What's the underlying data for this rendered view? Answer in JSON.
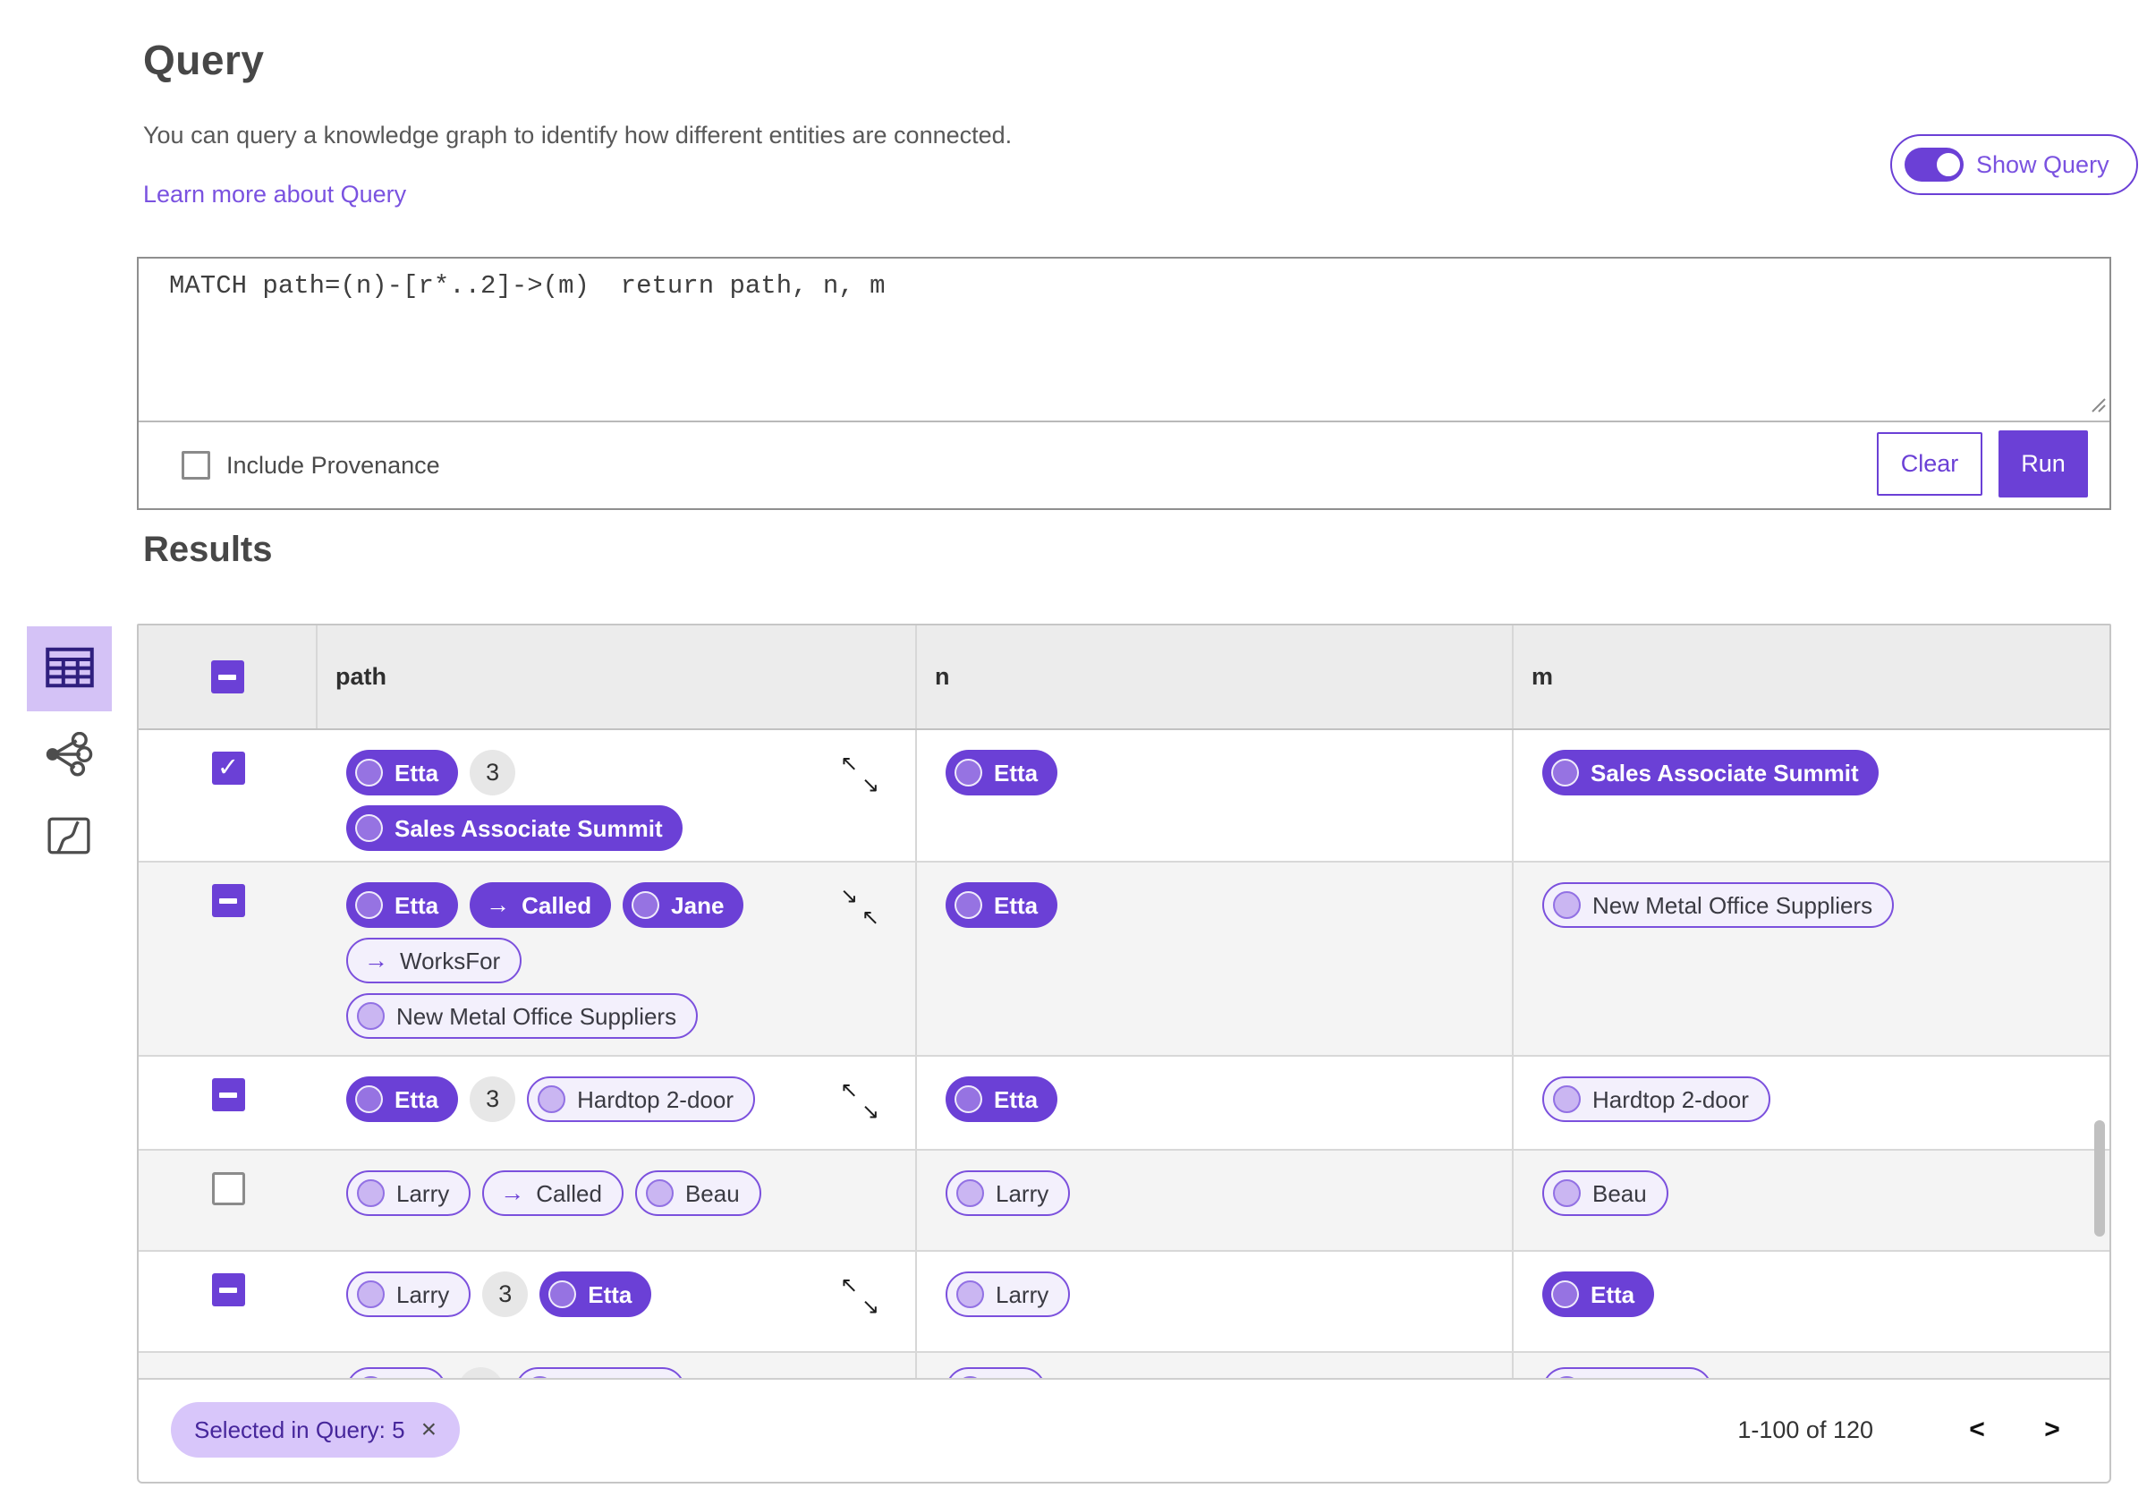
{
  "header": {
    "title": "Query",
    "description": "You can query a knowledge graph to identify how different entities are connected.",
    "learn_more_link": "Learn more about Query",
    "show_query_label": "Show Query",
    "show_query_state": "on"
  },
  "query": {
    "text": "MATCH path=(n)-[r*..2]->(m)  return path, n, m",
    "include_provenance_label": "Include Provenance",
    "include_provenance_checked": false,
    "clear_label": "Clear",
    "run_label": "Run"
  },
  "results": {
    "title": "Results",
    "view_switcher": [
      {
        "name": "table-view",
        "icon": "table-icon",
        "active": true
      },
      {
        "name": "graph-view",
        "icon": "graph-icon",
        "active": false
      },
      {
        "name": "map-view",
        "icon": "map-icon",
        "active": false
      }
    ],
    "table": {
      "columns": [
        "path",
        "n",
        "m"
      ],
      "header_checkbox": "indeterminate",
      "rows": [
        {
          "select": "checked",
          "expander": "expand",
          "path": [
            [
              {
                "kind": "node",
                "style": "solid",
                "label": "Etta"
              },
              {
                "kind": "count",
                "label": "3"
              }
            ],
            [
              {
                "kind": "node",
                "style": "solid",
                "label": "Sales Associate Summit"
              }
            ]
          ],
          "n": [
            {
              "kind": "node",
              "style": "solid",
              "label": "Etta"
            }
          ],
          "m": [
            {
              "kind": "node",
              "style": "solid",
              "label": "Sales Associate Summit"
            }
          ]
        },
        {
          "select": "indeterminate",
          "expander": "collapse",
          "path": [
            [
              {
                "kind": "node",
                "style": "solid",
                "label": "Etta"
              },
              {
                "kind": "rel",
                "style": "solid",
                "label": "Called"
              },
              {
                "kind": "node",
                "style": "solid",
                "label": "Jane"
              }
            ],
            [
              {
                "kind": "rel",
                "style": "outline",
                "label": "WorksFor"
              }
            ],
            [
              {
                "kind": "node",
                "style": "outline",
                "label": "New Metal Office Suppliers"
              }
            ]
          ],
          "n": [
            {
              "kind": "node",
              "style": "solid",
              "label": "Etta"
            }
          ],
          "m": [
            {
              "kind": "node",
              "style": "outline",
              "label": "New Metal Office Suppliers"
            }
          ]
        },
        {
          "select": "indeterminate",
          "expander": "expand",
          "path": [
            [
              {
                "kind": "node",
                "style": "solid",
                "label": "Etta"
              },
              {
                "kind": "count",
                "label": "3"
              },
              {
                "kind": "node",
                "style": "outline",
                "label": "Hardtop 2-door"
              }
            ]
          ],
          "n": [
            {
              "kind": "node",
              "style": "solid",
              "label": "Etta"
            }
          ],
          "m": [
            {
              "kind": "node",
              "style": "outline",
              "label": "Hardtop 2-door"
            }
          ]
        },
        {
          "select": "unchecked",
          "expander": null,
          "path": [
            [
              {
                "kind": "node",
                "style": "outline",
                "label": "Larry"
              },
              {
                "kind": "rel",
                "style": "outline",
                "label": "Called"
              },
              {
                "kind": "node",
                "style": "outline",
                "label": "Beau"
              }
            ]
          ],
          "n": [
            {
              "kind": "node",
              "style": "outline",
              "label": "Larry"
            }
          ],
          "m": [
            {
              "kind": "node",
              "style": "outline",
              "label": "Beau"
            }
          ]
        },
        {
          "select": "indeterminate",
          "expander": "expand",
          "path": [
            [
              {
                "kind": "node",
                "style": "outline",
                "label": "Larry"
              },
              {
                "kind": "count",
                "label": "3"
              },
              {
                "kind": "node",
                "style": "solid",
                "label": "Etta"
              }
            ]
          ],
          "n": [
            {
              "kind": "node",
              "style": "outline",
              "label": "Larry"
            }
          ],
          "m": [
            {
              "kind": "node",
              "style": "solid",
              "label": "Etta"
            }
          ]
        },
        {
          "select": null,
          "expander": null,
          "clipped": true,
          "path": [
            [
              {
                "kind": "node",
                "style": "outline",
                "label": "",
                "ghost": "sm"
              },
              {
                "kind": "count",
                "label": ""
              },
              {
                "kind": "node",
                "style": "outline",
                "label": "",
                "ghost": "lg"
              }
            ]
          ],
          "n": [
            {
              "kind": "node",
              "style": "outline",
              "label": "",
              "ghost": "sm"
            }
          ],
          "m": [
            {
              "kind": "node",
              "style": "outline",
              "label": "",
              "ghost": "lg"
            }
          ]
        }
      ]
    },
    "footer": {
      "selection_chip": "Selected in Query: 5",
      "chip_close_icon": "×",
      "range_label": "1-100 of 120",
      "prev_icon": "<",
      "next_icon": ">"
    }
  },
  "colors": {
    "primary": "#6b40d6",
    "link": "#7a52e0",
    "chip_bg": "#d8c6fa",
    "pill_outline_bg": "#f3f0fc",
    "active_view_bg": "#d4c2f6",
    "header_row_bg": "#ececec",
    "alt_row_bg": "#f4f4f4"
  }
}
